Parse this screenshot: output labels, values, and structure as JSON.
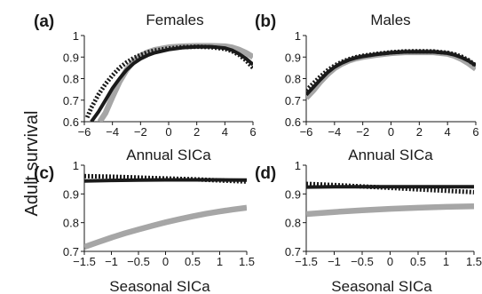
{
  "figure": {
    "ylabel_shared": "Adult survival"
  },
  "chart_data": [
    {
      "type": "line",
      "panel_label": "(a)",
      "title": "Females",
      "xlabel": "Annual SICa",
      "ylabel": "Adult survival",
      "xlim": [
        -6,
        6
      ],
      "ylim": [
        0.6,
        1.0
      ],
      "x_ticks": [
        -6,
        -4,
        -2,
        0,
        2,
        4,
        6
      ],
      "y_ticks": [
        0.6,
        0.7,
        0.8,
        0.9,
        1.0
      ],
      "x_tick_labels": [
        "−6",
        "−4",
        "−2",
        "0",
        "2",
        "4",
        "6"
      ],
      "y_tick_labels": [
        "0.6",
        "0.7",
        "0.8",
        "0.9",
        "1"
      ],
      "grid": false,
      "series": [
        {
          "style": "gray-thick",
          "color": "#a6a6a6",
          "x": [
            -4.9,
            -4.5,
            -4,
            -3.5,
            -3,
            -2.5,
            -2,
            -1.5,
            -1,
            0,
            1,
            2,
            3,
            4,
            4.5,
            5,
            5.5,
            6
          ],
          "y": [
            0.6,
            0.64,
            0.715,
            0.785,
            0.84,
            0.88,
            0.905,
            0.922,
            0.933,
            0.945,
            0.95,
            0.952,
            0.952,
            0.95,
            0.945,
            0.935,
            0.92,
            0.9
          ]
        },
        {
          "style": "black-solid",
          "color": "#1a1a1a",
          "x": [
            -5.5,
            -5,
            -4.5,
            -4,
            -3.5,
            -3,
            -2.5,
            -2,
            -1.5,
            -1,
            0,
            1,
            2,
            3,
            4,
            4.5,
            5,
            5.5,
            6
          ],
          "y": [
            0.6,
            0.645,
            0.7,
            0.755,
            0.8,
            0.84,
            0.87,
            0.892,
            0.908,
            0.92,
            0.935,
            0.944,
            0.948,
            0.948,
            0.942,
            0.932,
            0.915,
            0.893,
            0.865
          ]
        },
        {
          "style": "black-dotted",
          "color": "#1a1a1a",
          "x": [
            -5.8,
            -5.5,
            -5,
            -4.5,
            -4,
            -3.5,
            -3,
            -2.5,
            -2,
            -1.5,
            -1,
            0,
            1,
            2,
            3,
            4,
            4.5,
            5,
            5.5,
            6
          ],
          "y": [
            0.62,
            0.665,
            0.725,
            0.775,
            0.815,
            0.85,
            0.875,
            0.895,
            0.91,
            0.922,
            0.93,
            0.94,
            0.946,
            0.948,
            0.946,
            0.938,
            0.928,
            0.91,
            0.885,
            0.85
          ]
        }
      ]
    },
    {
      "type": "line",
      "panel_label": "(b)",
      "title": "Males",
      "xlabel": "Annual SICa",
      "ylabel": "Adult survival",
      "xlim": [
        -6,
        6
      ],
      "ylim": [
        0.6,
        1.0
      ],
      "x_ticks": [
        -6,
        -4,
        -2,
        0,
        2,
        4,
        6
      ],
      "y_ticks": [
        0.6,
        0.7,
        0.8,
        0.9,
        1.0
      ],
      "x_tick_labels": [
        "−6",
        "−4",
        "−2",
        "0",
        "2",
        "4",
        "6"
      ],
      "y_tick_labels": [
        "0.6",
        "0.7",
        "0.8",
        "0.9",
        "1"
      ],
      "grid": false,
      "series": [
        {
          "style": "gray-thick",
          "color": "#a6a6a6",
          "x": [
            -6,
            -5.5,
            -5,
            -4.5,
            -4,
            -3.5,
            -3,
            -2.5,
            -2,
            -1,
            0,
            1,
            2,
            3,
            4,
            4.5,
            5,
            5.5,
            6
          ],
          "y": [
            0.71,
            0.745,
            0.785,
            0.82,
            0.848,
            0.868,
            0.883,
            0.893,
            0.9,
            0.91,
            0.918,
            0.922,
            0.923,
            0.922,
            0.915,
            0.905,
            0.89,
            0.87,
            0.845
          ]
        },
        {
          "style": "black-solid",
          "color": "#1a1a1a",
          "x": [
            -6,
            -5.5,
            -5,
            -4.5,
            -4,
            -3.5,
            -3,
            -2.5,
            -2,
            -1,
            0,
            1,
            2,
            3,
            4,
            4.5,
            5,
            5.5,
            6
          ],
          "y": [
            0.725,
            0.76,
            0.795,
            0.828,
            0.853,
            0.872,
            0.886,
            0.896,
            0.903,
            0.913,
            0.92,
            0.924,
            0.925,
            0.924,
            0.918,
            0.91,
            0.898,
            0.882,
            0.862
          ]
        },
        {
          "style": "black-dotted",
          "color": "#1a1a1a",
          "x": [
            -6,
            -5.5,
            -5,
            -4.5,
            -4,
            -3.5,
            -3,
            -2.5,
            -2,
            -1,
            0,
            1,
            2,
            3,
            4,
            4.5,
            5,
            5.5,
            6
          ],
          "y": [
            0.745,
            0.778,
            0.81,
            0.838,
            0.86,
            0.877,
            0.89,
            0.899,
            0.906,
            0.915,
            0.922,
            0.926,
            0.927,
            0.926,
            0.92,
            0.913,
            0.902,
            0.885,
            0.86
          ]
        }
      ]
    },
    {
      "type": "line",
      "panel_label": "(c)",
      "title": "",
      "xlabel": "Seasonal SICa",
      "ylabel": "Adult survival",
      "xlim": [
        -1.5,
        1.5
      ],
      "ylim": [
        0.7,
        1.0
      ],
      "x_ticks": [
        -1.5,
        -1,
        -0.5,
        0,
        0.5,
        1,
        1.5
      ],
      "y_ticks": [
        0.7,
        0.8,
        0.9,
        1.0
      ],
      "x_tick_labels": [
        "−1.5",
        "−1",
        "−0.5",
        "0",
        "0.5",
        "1",
        "1.5"
      ],
      "y_tick_labels": [
        "0.7",
        "0.8",
        "0.9",
        "1"
      ],
      "grid": false,
      "series": [
        {
          "style": "gray-thick",
          "color": "#a6a6a6",
          "x": [
            -1.5,
            -1.25,
            -1,
            -0.75,
            -0.5,
            -0.25,
            0,
            0.25,
            0.5,
            0.75,
            1,
            1.25,
            1.5
          ],
          "y": [
            0.715,
            0.732,
            0.748,
            0.763,
            0.776,
            0.789,
            0.801,
            0.812,
            0.822,
            0.831,
            0.839,
            0.846,
            0.852
          ]
        },
        {
          "style": "black-solid",
          "color": "#1a1a1a",
          "x": [
            -1.5,
            -1,
            -0.5,
            0,
            0.5,
            1,
            1.5
          ],
          "y": [
            0.945,
            0.947,
            0.948,
            0.949,
            0.949,
            0.949,
            0.948
          ]
        },
        {
          "style": "black-dotted",
          "color": "#1a1a1a",
          "x": [
            -1.5,
            -1,
            -0.5,
            0,
            0.5,
            1,
            1.5
          ],
          "y": [
            0.962,
            0.96,
            0.957,
            0.954,
            0.951,
            0.947,
            0.943
          ]
        }
      ]
    },
    {
      "type": "line",
      "panel_label": "(d)",
      "title": "",
      "xlabel": "Seasonal SICa",
      "ylabel": "Adult survival",
      "xlim": [
        -1.5,
        1.5
      ],
      "ylim": [
        0.7,
        1.0
      ],
      "x_ticks": [
        -1.5,
        -1,
        -0.5,
        0,
        0.5,
        1,
        1.5
      ],
      "y_ticks": [
        0.7,
        0.8,
        0.9,
        1.0
      ],
      "x_tick_labels": [
        "−1.5",
        "−1",
        "−0.5",
        "0",
        "0.5",
        "1",
        "1.5"
      ],
      "y_tick_labels": [
        "0.7",
        "0.8",
        "0.9",
        "1"
      ],
      "grid": false,
      "series": [
        {
          "style": "gray-thick",
          "color": "#a6a6a6",
          "x": [
            -1.5,
            -1,
            -0.5,
            0,
            0.5,
            1,
            1.5
          ],
          "y": [
            0.83,
            0.837,
            0.843,
            0.848,
            0.852,
            0.855,
            0.857
          ]
        },
        {
          "style": "black-solid",
          "color": "#1a1a1a",
          "x": [
            -1.5,
            -1,
            -0.5,
            0,
            0.5,
            1,
            1.5
          ],
          "y": [
            0.924,
            0.925,
            0.925,
            0.925,
            0.925,
            0.925,
            0.925
          ]
        },
        {
          "style": "black-dotted",
          "color": "#1a1a1a",
          "x": [
            -1.5,
            -1,
            -0.5,
            0,
            0.5,
            1,
            1.5
          ],
          "y": [
            0.935,
            0.931,
            0.926,
            0.921,
            0.916,
            0.911,
            0.906
          ]
        }
      ]
    }
  ]
}
